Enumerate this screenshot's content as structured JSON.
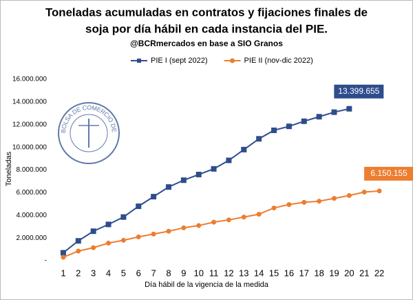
{
  "chart_data": {
    "type": "line",
    "title": [
      "Toneladas acumuladas en contratos y fijaciones finales de",
      "soja por día hábil en cada instancia del PIE."
    ],
    "subtitle": "@BCRmercados en base a SIO Granos",
    "logo_text": "BOLSA DE COMERCIO DE ROSARIO",
    "x_label": "Día hábil de la vigencia de la medida",
    "y_label": "Toneladas",
    "categories": [
      "1",
      "2",
      "3",
      "4",
      "5",
      "6",
      "7",
      "8",
      "9",
      "10",
      "11",
      "12",
      "13",
      "14",
      "15",
      "16",
      "17",
      "18",
      "19",
      "20",
      "21",
      "22"
    ],
    "ylim": [
      0,
      16000000
    ],
    "yticks": [
      {
        "value": 0,
        "label": "-"
      },
      {
        "value": 2000000,
        "label": "2.000.000"
      },
      {
        "value": 4000000,
        "label": "4.000.000"
      },
      {
        "value": 6000000,
        "label": "6.000.000"
      },
      {
        "value": 8000000,
        "label": "8.000.000"
      },
      {
        "value": 10000000,
        "label": "10.000.000"
      },
      {
        "value": 12000000,
        "label": "12.000.000"
      },
      {
        "value": 14000000,
        "label": "14.000.000"
      },
      {
        "value": 16000000,
        "label": "16.000.000"
      }
    ],
    "grid": false,
    "legend": "top",
    "series": [
      {
        "name": "PIE I (sept 2022)",
        "color": "#2e4d8c",
        "marker": "square",
        "values": [
          700000,
          1750000,
          2600000,
          3200000,
          3850000,
          4800000,
          5650000,
          6500000,
          7100000,
          7600000,
          8100000,
          8850000,
          9800000,
          10750000,
          11500000,
          11850000,
          12300000,
          12700000,
          13100000,
          13399655,
          null,
          null
        ],
        "value_labels": [
          null,
          null,
          null,
          null,
          null,
          null,
          null,
          null,
          null,
          null,
          null,
          null,
          null,
          null,
          null,
          null,
          null,
          null,
          null,
          "13.399.655",
          null,
          null
        ]
      },
      {
        "name": "PIE II (nov-dic 2022)",
        "color": "#ed7d31",
        "marker": "circle",
        "values": [
          300000,
          850000,
          1150000,
          1550000,
          1800000,
          2100000,
          2350000,
          2600000,
          2900000,
          3100000,
          3400000,
          3600000,
          3850000,
          4100000,
          4650000,
          4950000,
          5150000,
          5250000,
          5500000,
          5750000,
          6050000,
          6150155
        ],
        "value_labels": [
          null,
          null,
          null,
          null,
          null,
          null,
          null,
          null,
          null,
          null,
          null,
          null,
          null,
          null,
          null,
          null,
          null,
          null,
          null,
          null,
          null,
          "6.150.155"
        ]
      }
    ]
  }
}
